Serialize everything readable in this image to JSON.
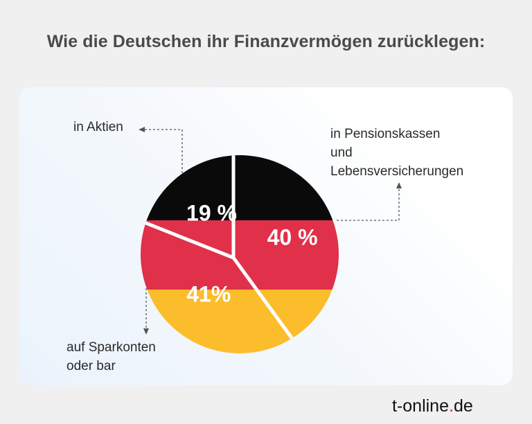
{
  "title": "Wie die Deutschen ihr Finanzvermögen zurücklegen:",
  "chart_data": {
    "type": "pie",
    "title": "Wie die Deutschen ihr Finanzvermögen zurücklegen:",
    "slices": [
      {
        "key": "pension",
        "label": "in Pensionskassen und Lebensversicherungen",
        "value": 40,
        "value_label": "40 %"
      },
      {
        "key": "spar",
        "label": "auf Sparkonten oder bar",
        "value": 41,
        "value_label": "41%"
      },
      {
        "key": "aktien",
        "label": "in Aktien",
        "value": 19,
        "value_label": "19 %"
      }
    ],
    "fill_bands": [
      "#0a0a0a",
      "#e0304a",
      "#fbbd2b"
    ]
  },
  "labels": {
    "aktien": "in Aktien",
    "pension_line1": "in Pensionskassen",
    "pension_line2": "und",
    "pension_line3": "Lebensversicherungen",
    "spar_line1": "auf Sparkonten",
    "spar_line2": "oder bar"
  },
  "logo": {
    "text_a": "t-online",
    "dot": ".",
    "text_b": "de",
    "accent": "#e20074"
  }
}
